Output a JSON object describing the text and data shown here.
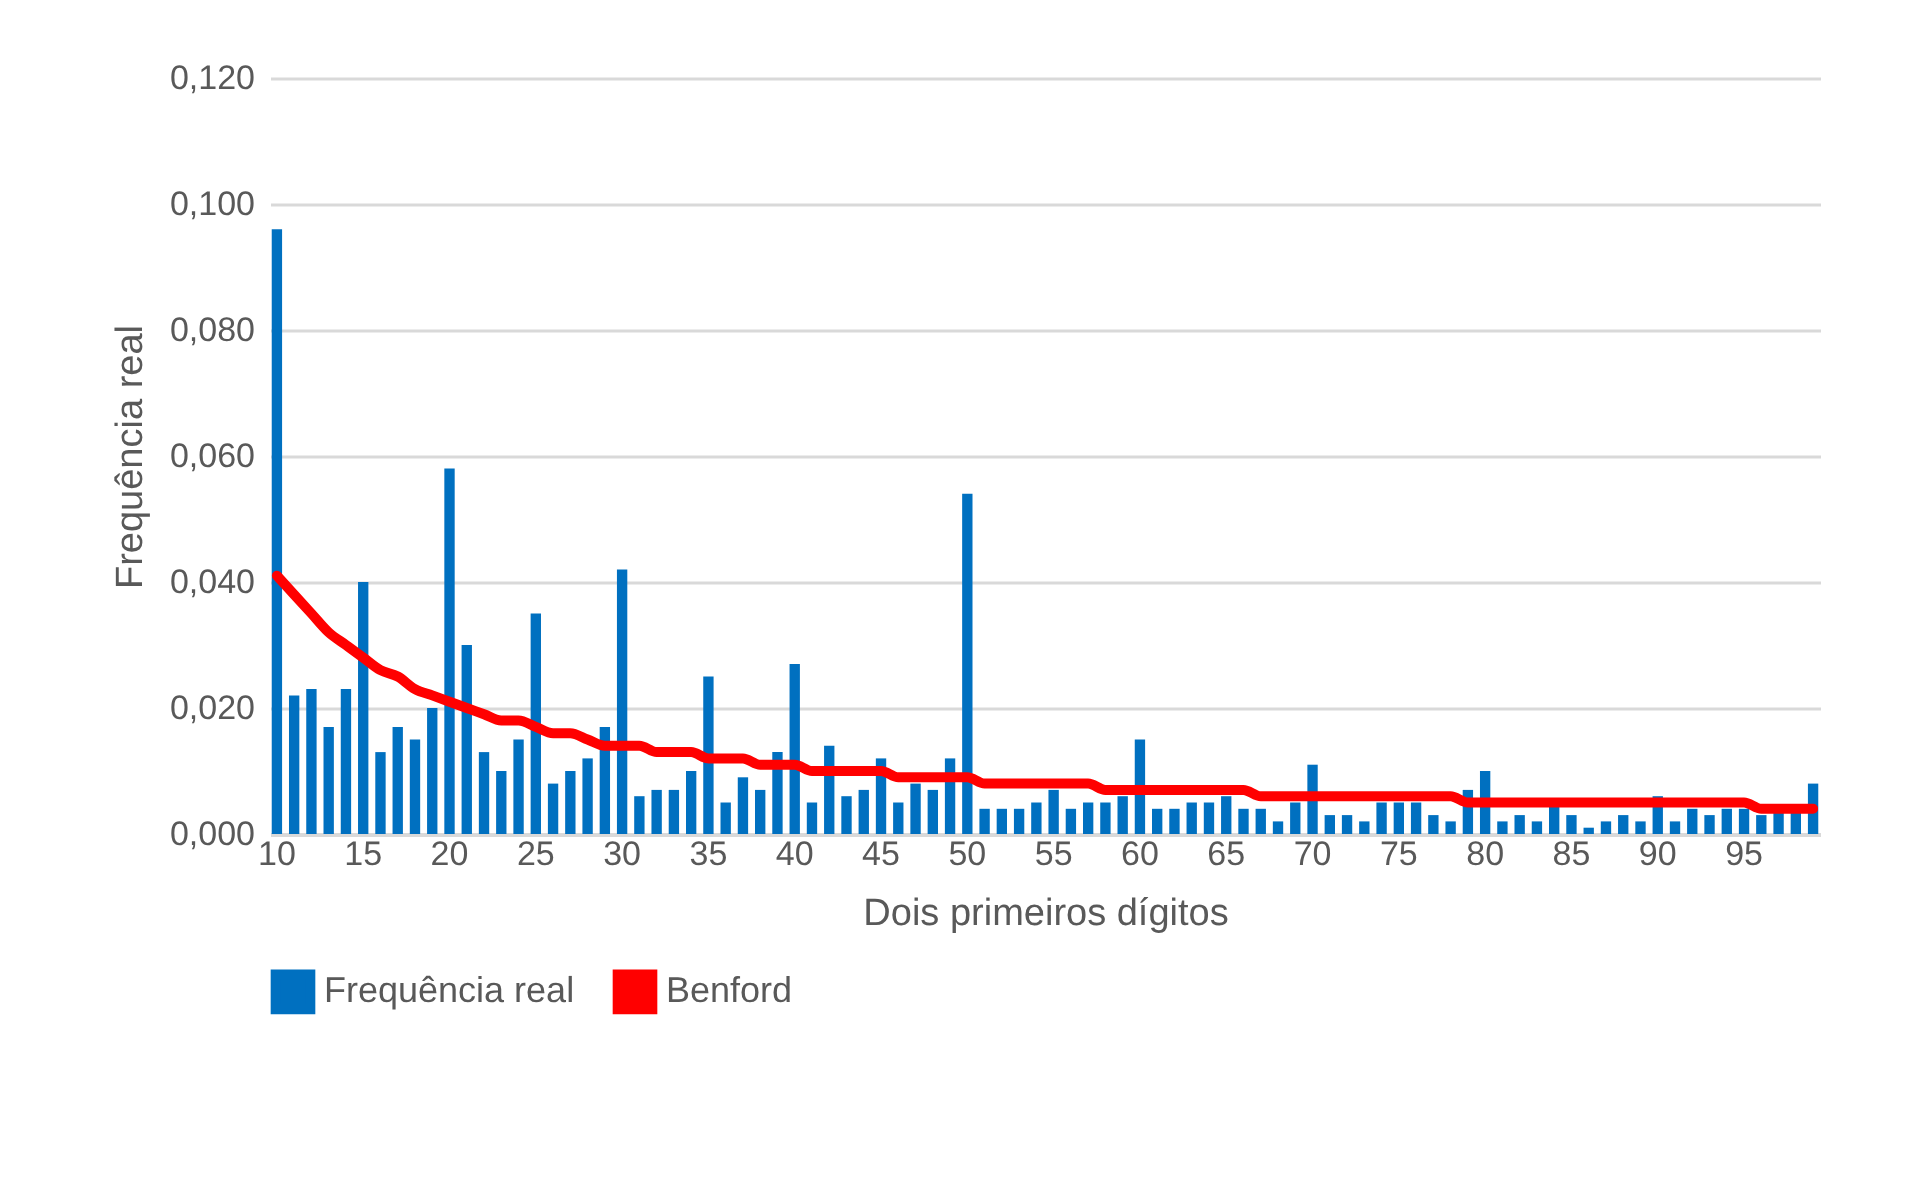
{
  "chart_data": {
    "type": "bar",
    "xlabel": "Dois primeiros dígitos",
    "ylabel": "Frequência real",
    "categories": [
      "10",
      null,
      null,
      null,
      null,
      "15",
      null,
      null,
      null,
      null,
      "20",
      null,
      null,
      null,
      null,
      "25",
      null,
      null,
      null,
      null,
      "30",
      null,
      null,
      null,
      null,
      "35",
      null,
      null,
      null,
      null,
      "40",
      null,
      null,
      null,
      null,
      "45",
      null,
      null,
      null,
      null,
      "50",
      null,
      null,
      null,
      null,
      "55",
      null,
      null,
      null,
      null,
      "60",
      null,
      null,
      null,
      null,
      "65",
      null,
      null,
      null,
      null,
      "70",
      null,
      null,
      null,
      null,
      "75",
      null,
      null,
      null,
      null,
      "80",
      null,
      null,
      null,
      null,
      "85",
      null,
      null,
      null,
      null,
      "90",
      null,
      null,
      null,
      null,
      "95",
      null,
      null,
      null,
      null
    ],
    "ylim": [
      0,
      0.12
    ],
    "yticks": [
      {
        "value": 0,
        "label": "0,000"
      },
      {
        "value": 0.02,
        "label": "0,020"
      },
      {
        "value": 0.04,
        "label": "0,040"
      },
      {
        "value": 0.06,
        "label": "0,060"
      },
      {
        "value": 0.08,
        "label": "0,080"
      },
      {
        "value": 0.1,
        "label": "0,100"
      },
      {
        "value": 0.12,
        "label": "0,120"
      }
    ],
    "grid": "y",
    "legend": "bottom",
    "series": [
      {
        "name": "Frequência real",
        "color": "#0070c0",
        "values": [
          0.096,
          0.022,
          0.023,
          0.017,
          0.023,
          0.04,
          0.013,
          0.017,
          0.015,
          0.02,
          0.058,
          0.03,
          0.013,
          0.01,
          0.015,
          0.035,
          0.008,
          0.01,
          0.012,
          0.017,
          0.042,
          0.006,
          0.007,
          0.007,
          0.01,
          0.025,
          0.005,
          0.009,
          0.007,
          0.013,
          0.027,
          0.005,
          0.014,
          0.006,
          0.007,
          0.012,
          0.005,
          0.008,
          0.007,
          0.012,
          0.054,
          0.004,
          0.004,
          0.004,
          0.005,
          0.007,
          0.004,
          0.005,
          0.005,
          0.006,
          0.015,
          0.004,
          0.004,
          0.005,
          0.005,
          0.006,
          0.004,
          0.004,
          0.002,
          0.005,
          0.011,
          0.003,
          0.003,
          0.002,
          0.005,
          0.005,
          0.005,
          0.003,
          0.002,
          0.007,
          0.01,
          0.002,
          0.003,
          0.002,
          0.005,
          0.003,
          0.001,
          0.002,
          0.003,
          0.002,
          0.006,
          0.002,
          0.004,
          0.003,
          0.004,
          0.004,
          0.003,
          0.004,
          0.004,
          0.008
        ]
      },
      {
        "name": "Benford",
        "type": "line",
        "color": "#ff0000",
        "values": [
          0.041,
          0.038,
          0.035,
          0.032,
          0.03,
          0.028,
          0.026,
          0.025,
          0.023,
          0.022,
          0.021,
          0.02,
          0.019,
          0.018,
          0.018,
          0.017,
          0.016,
          0.016,
          0.015,
          0.014,
          0.014,
          0.014,
          0.013,
          0.013,
          0.013,
          0.012,
          0.012,
          0.012,
          0.011,
          0.011,
          0.011,
          0.01,
          0.01,
          0.01,
          0.01,
          0.01,
          0.009,
          0.009,
          0.009,
          0.009,
          0.009,
          0.008,
          0.008,
          0.008,
          0.008,
          0.008,
          0.008,
          0.008,
          0.007,
          0.007,
          0.007,
          0.007,
          0.007,
          0.007,
          0.007,
          0.007,
          0.007,
          0.006,
          0.006,
          0.006,
          0.006,
          0.006,
          0.006,
          0.006,
          0.006,
          0.006,
          0.006,
          0.006,
          0.006,
          0.005,
          0.005,
          0.005,
          0.005,
          0.005,
          0.005,
          0.005,
          0.005,
          0.005,
          0.005,
          0.005,
          0.005,
          0.005,
          0.005,
          0.005,
          0.005,
          0.005,
          0.004,
          0.004,
          0.004,
          0.004
        ]
      }
    ]
  }
}
